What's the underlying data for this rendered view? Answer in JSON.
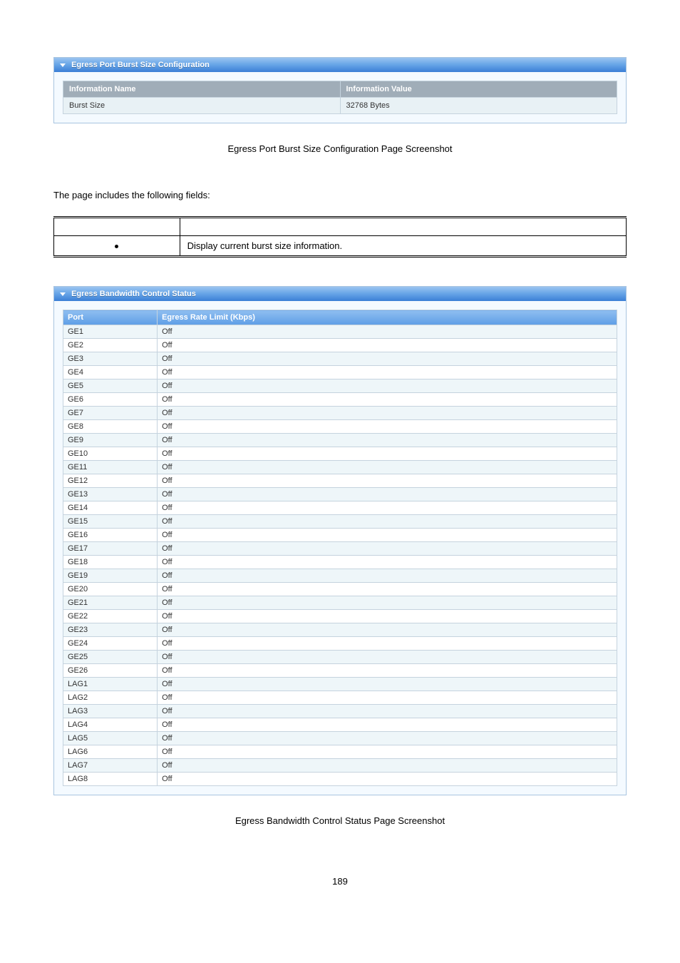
{
  "burst_panel": {
    "title": "Egress Port Burst Size Configuration",
    "header_name": "Information Name",
    "header_value": "Information Value",
    "row_name": "Burst Size",
    "row_value": "32768 Bytes"
  },
  "caption1": "Egress Port Burst Size Configuration Page Screenshot",
  "intro_text": "The page includes the following fields:",
  "fields_table": {
    "desc": "Display current burst size information."
  },
  "status_panel": {
    "title": "Egress Bandwidth Control Status",
    "col_port": "Port",
    "col_rate": "Egress Rate Limit (Kbps)",
    "rows": [
      {
        "port": "GE1",
        "rate": "Off"
      },
      {
        "port": "GE2",
        "rate": "Off"
      },
      {
        "port": "GE3",
        "rate": "Off"
      },
      {
        "port": "GE4",
        "rate": "Off"
      },
      {
        "port": "GE5",
        "rate": "Off"
      },
      {
        "port": "GE6",
        "rate": "Off"
      },
      {
        "port": "GE7",
        "rate": "Off"
      },
      {
        "port": "GE8",
        "rate": "Off"
      },
      {
        "port": "GE9",
        "rate": "Off"
      },
      {
        "port": "GE10",
        "rate": "Off"
      },
      {
        "port": "GE11",
        "rate": "Off"
      },
      {
        "port": "GE12",
        "rate": "Off"
      },
      {
        "port": "GE13",
        "rate": "Off"
      },
      {
        "port": "GE14",
        "rate": "Off"
      },
      {
        "port": "GE15",
        "rate": "Off"
      },
      {
        "port": "GE16",
        "rate": "Off"
      },
      {
        "port": "GE17",
        "rate": "Off"
      },
      {
        "port": "GE18",
        "rate": "Off"
      },
      {
        "port": "GE19",
        "rate": "Off"
      },
      {
        "port": "GE20",
        "rate": "Off"
      },
      {
        "port": "GE21",
        "rate": "Off"
      },
      {
        "port": "GE22",
        "rate": "Off"
      },
      {
        "port": "GE23",
        "rate": "Off"
      },
      {
        "port": "GE24",
        "rate": "Off"
      },
      {
        "port": "GE25",
        "rate": "Off"
      },
      {
        "port": "GE26",
        "rate": "Off"
      },
      {
        "port": "LAG1",
        "rate": "Off"
      },
      {
        "port": "LAG2",
        "rate": "Off"
      },
      {
        "port": "LAG3",
        "rate": "Off"
      },
      {
        "port": "LAG4",
        "rate": "Off"
      },
      {
        "port": "LAG5",
        "rate": "Off"
      },
      {
        "port": "LAG6",
        "rate": "Off"
      },
      {
        "port": "LAG7",
        "rate": "Off"
      },
      {
        "port": "LAG8",
        "rate": "Off"
      }
    ]
  },
  "caption2": "Egress Bandwidth Control Status Page Screenshot",
  "page_number": "189",
  "colors": {
    "panel_border": "#a8c4e0",
    "panel_bg": "#f4faff",
    "header_grad_top": "#9bc4f0",
    "header_grad_bot": "#3b7fd6",
    "th_bg": "#a0adb8",
    "row_a": "#eef6f9",
    "row_b": "#ffffff"
  }
}
